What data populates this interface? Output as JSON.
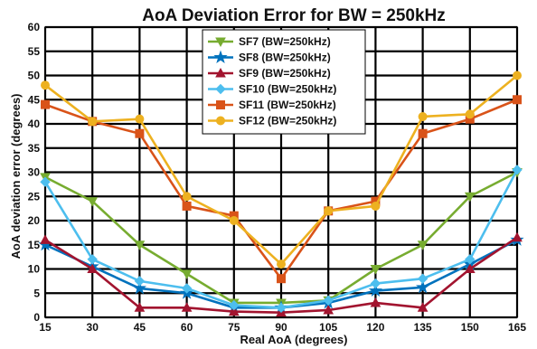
{
  "chart_data": {
    "type": "line",
    "title": "AoA Deviation Error for BW = 250kHz",
    "xlabel": "Real AoA (degrees)",
    "ylabel": "AoA deviation error (degrees)",
    "x": [
      15,
      30,
      45,
      60,
      75,
      90,
      105,
      120,
      135,
      150,
      165
    ],
    "xlim": [
      15,
      165
    ],
    "ylim": [
      0,
      60
    ],
    "xticks": [
      "15",
      "30",
      "45",
      "60",
      "75",
      "90",
      "105",
      "120",
      "135",
      "150",
      "165"
    ],
    "yticks": [
      "0",
      "5",
      "10",
      "15",
      "20",
      "25",
      "30",
      "35",
      "40",
      "45",
      "50",
      "55",
      "60"
    ],
    "grid": true,
    "legend_position": "top-center",
    "series": [
      {
        "name": "SF7 (BW=250kHz)",
        "color": "#77ac30",
        "marker": "triangle-down",
        "values": [
          29,
          24,
          15,
          9,
          3,
          3,
          3.5,
          10,
          15,
          25,
          30
        ]
      },
      {
        "name": "SF8 (BW=250kHz)",
        "color": "#0072bd",
        "marker": "star",
        "values": [
          15,
          10.5,
          6,
          5,
          2,
          2,
          3,
          5.5,
          6.2,
          11,
          16
        ]
      },
      {
        "name": "SF9 (BW=250kHz)",
        "color": "#a2142f",
        "marker": "triangle-up",
        "values": [
          16,
          10,
          2,
          2,
          1.2,
          1,
          1.5,
          3,
          2,
          10,
          16.5
        ]
      },
      {
        "name": "SF10 (BW=250kHz)",
        "color": "#4dbeee",
        "marker": "diamond",
        "values": [
          28,
          12,
          7.5,
          6,
          2.5,
          2,
          3.5,
          7,
          8,
          12,
          30.5
        ]
      },
      {
        "name": "SF11 (BW=250kHz)",
        "color": "#d95319",
        "marker": "square",
        "values": [
          44,
          40.5,
          38,
          23,
          21,
          8,
          22,
          24,
          38,
          41,
          45
        ]
      },
      {
        "name": "SF12 (BW=250kHz)",
        "color": "#edb120",
        "marker": "circle",
        "values": [
          48,
          40.5,
          41,
          25,
          20,
          11,
          22,
          23,
          41.5,
          42,
          50
        ]
      }
    ]
  }
}
